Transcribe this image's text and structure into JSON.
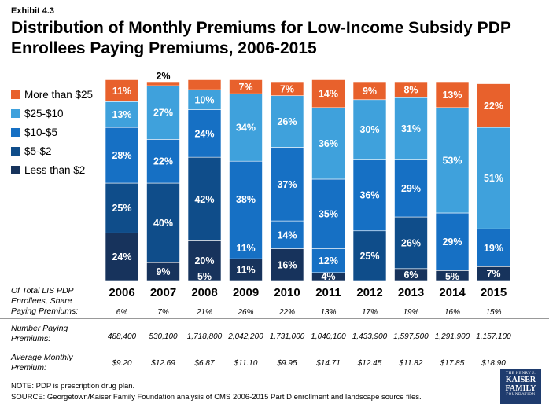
{
  "exhibit": "Exhibit 4.3",
  "title": "Distribution of Monthly Premiums for Low-Income Subsidy PDP Enrollees Paying Premiums, 2006-2015",
  "colors": {
    "less_than_2": "#17335c",
    "two_to_5": "#0f4d8a",
    "five_to_10": "#1670c4",
    "ten_to_25": "#3fa1dc",
    "more_than_25": "#e8612c"
  },
  "chart_data": {
    "type": "bar",
    "stacked": true,
    "normalized": true,
    "categories": [
      "2006",
      "2007",
      "2008",
      "2009",
      "2010",
      "2011",
      "2012",
      "2013",
      "2014",
      "2015"
    ],
    "series": [
      {
        "name": "Less than $2",
        "key": "less_than_2",
        "values": [
          24,
          9,
          20,
          11,
          16,
          4,
          0,
          6,
          5,
          7
        ],
        "labels": [
          "24%",
          "9%",
          "20%",
          "11%",
          "16%",
          "4%",
          "",
          "6%",
          "5%",
          "7%"
        ]
      },
      {
        "name": "$5-$2",
        "key": "two_to_5",
        "values": [
          25,
          40,
          42,
          0,
          0,
          0,
          25,
          26,
          0,
          0
        ],
        "labels": [
          "25%",
          "40%",
          "42%",
          "",
          "",
          "",
          "25%",
          "26%",
          "",
          ""
        ]
      },
      {
        "name": "$10-$5",
        "key": "five_to_10",
        "values": [
          28,
          22,
          24,
          49,
          51,
          47,
          36,
          29,
          29,
          19
        ],
        "segments": [
          [
            28
          ],
          [
            22
          ],
          [
            24
          ],
          [
            11,
            38
          ],
          [
            14,
            37
          ],
          [
            12,
            35
          ],
          [
            36
          ],
          [
            29
          ],
          [
            29
          ],
          [
            19
          ]
        ],
        "labels": [
          "28%",
          "22%",
          "24%",
          "11%|38%",
          "14%|37%",
          "12%|35%",
          "36%",
          "29%",
          "29%",
          "19%"
        ]
      },
      {
        "name": "$25-$10",
        "key": "ten_to_25",
        "values": [
          13,
          27,
          10,
          34,
          26,
          36,
          30,
          31,
          53,
          51
        ],
        "labels": [
          "13%",
          "27%",
          "10%",
          "34%",
          "26%",
          "36%",
          "30%",
          "31%",
          "53%",
          "51%"
        ]
      },
      {
        "name": "More than $25",
        "key": "more_than_25",
        "values": [
          11,
          2,
          5,
          7,
          7,
          14,
          9,
          8,
          13,
          22
        ],
        "labels": [
          "11%",
          "2%",
          "5%",
          "7%",
          "7%",
          "14%",
          "9%",
          "8%",
          "13%",
          "22%"
        ]
      }
    ],
    "legend_order": [
      "More than $25",
      "$25-$10",
      "$10-$5",
      "$5-$2",
      "Less than $2"
    ],
    "legend_position": "left"
  },
  "table": {
    "rows": [
      {
        "label_lines": [
          "Of Total LIS PDP",
          "Enrollees, Share",
          "Paying Premiums:"
        ],
        "values": [
          "6%",
          "7%",
          "21%",
          "26%",
          "22%",
          "13%",
          "17%",
          "19%",
          "16%",
          "15%"
        ]
      },
      {
        "label_lines": [
          "Number Paying",
          "Premiums:"
        ],
        "values": [
          "488,400",
          "530,100",
          "1,718,800",
          "2,042,200",
          "1,731,000",
          "1,040,100",
          "1,433,900",
          "1,597,500",
          "1,291,900",
          "1,157,100"
        ]
      },
      {
        "label_lines": [
          "Average Monthly",
          "Premium:"
        ],
        "values": [
          "$9.20",
          "$12.69",
          "$6.87",
          "$11.10",
          "$9.95",
          "$14.71",
          "$12.45",
          "$11.82",
          "$17.85",
          "$18.90"
        ]
      }
    ]
  },
  "notes": {
    "note": "NOTE: PDP is prescription drug plan.",
    "source": "SOURCE: Georgetown/Kaiser Family Foundation analysis of CMS 2006-2015 Part D enrollment and landscape source files."
  },
  "logo": {
    "line1": "THE HENRY J.",
    "line2": "KAISER",
    "line3": "FAMILY",
    "line4": "FOUNDATION"
  }
}
